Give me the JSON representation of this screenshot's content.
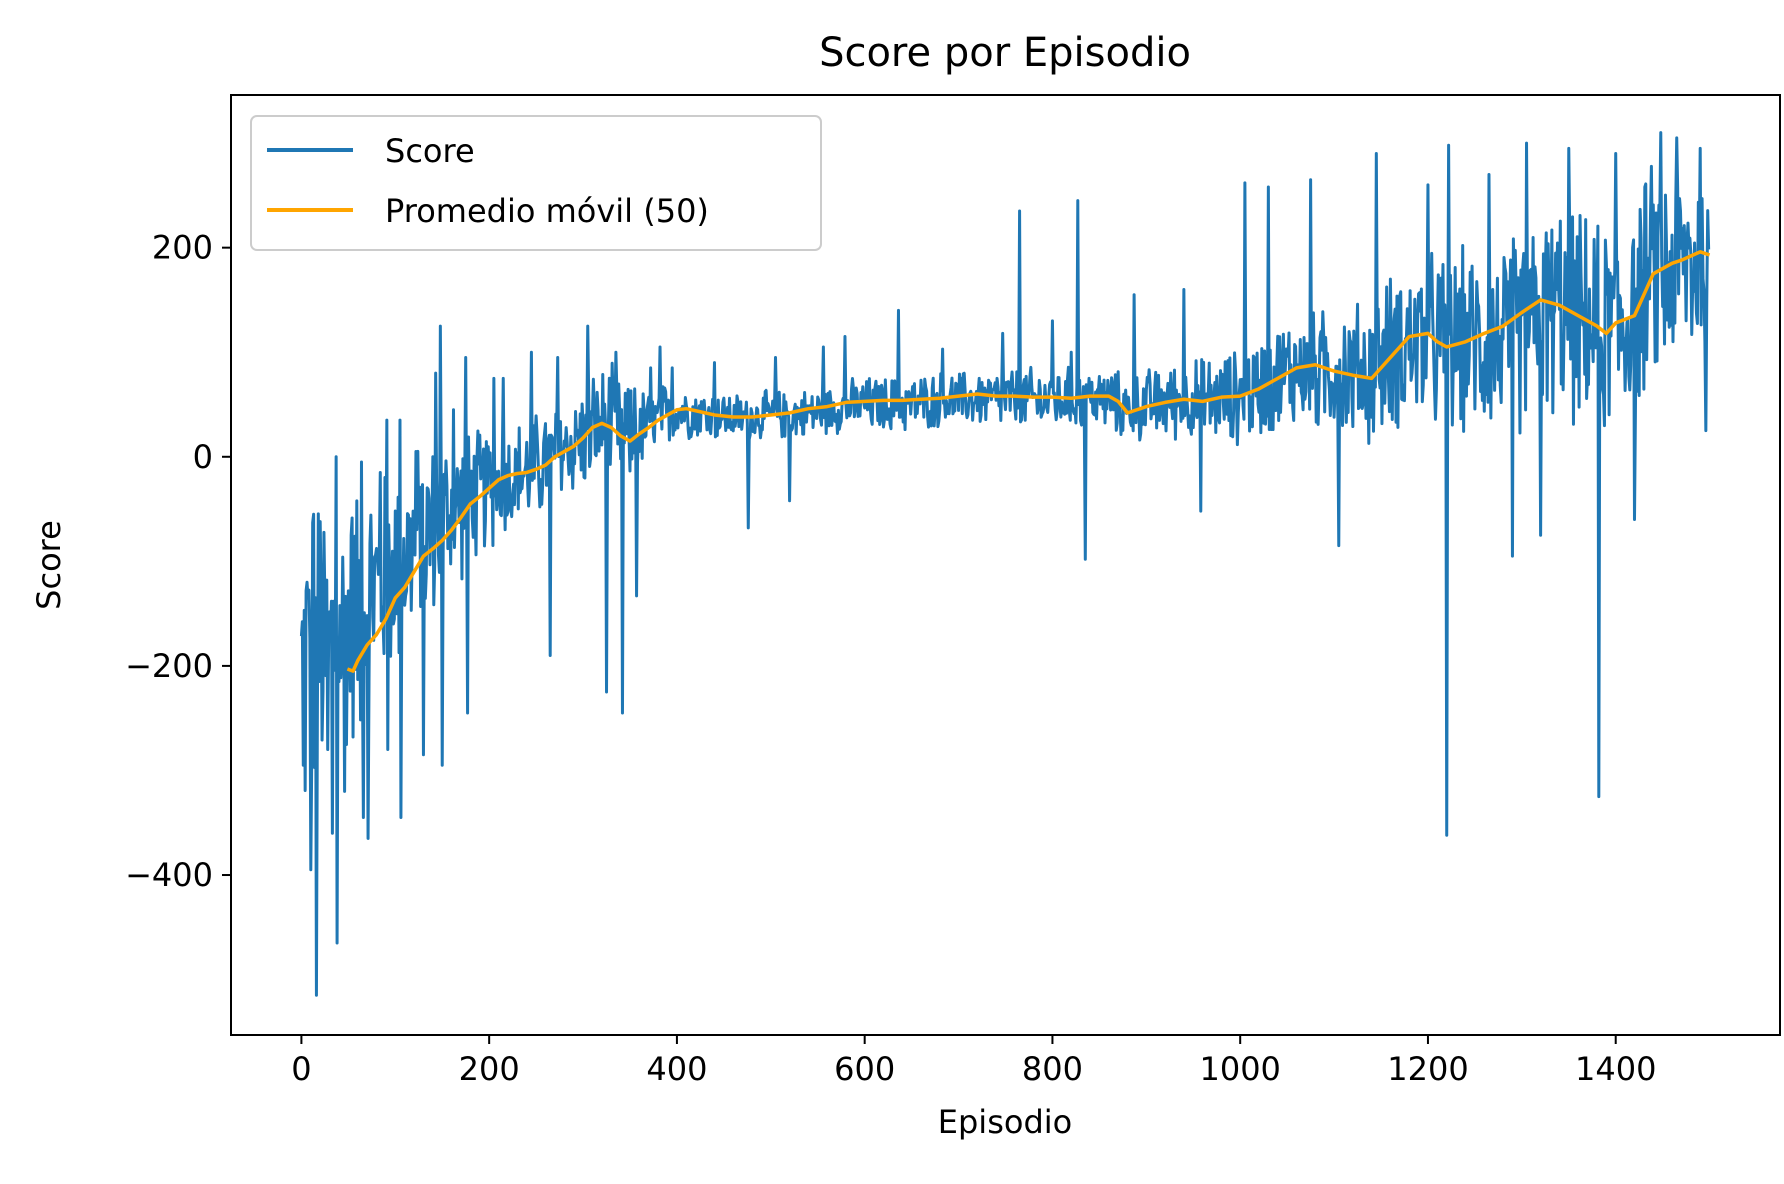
{
  "chart_data": {
    "type": "line",
    "title": "Score por Episodio",
    "xlabel": "Episodio",
    "ylabel": "Score",
    "xlim": [
      -75,
      1575
    ],
    "ylim": [
      -553,
      346
    ],
    "x_ticks": [
      {
        "value": 0,
        "label": "0"
      },
      {
        "value": 200,
        "label": "200"
      },
      {
        "value": 400,
        "label": "400"
      },
      {
        "value": 600,
        "label": "600"
      },
      {
        "value": 800,
        "label": "800"
      },
      {
        "value": 1000,
        "label": "1000"
      },
      {
        "value": 1200,
        "label": "1200"
      },
      {
        "value": 1400,
        "label": "1400"
      }
    ],
    "y_ticks": [
      {
        "value": 200,
        "label": "200"
      },
      {
        "value": 0,
        "label": "0"
      },
      {
        "value": -200,
        "label": "−200"
      },
      {
        "value": -400,
        "label": "−400"
      }
    ],
    "grid": false,
    "legend_position": "top-left",
    "series": [
      {
        "name": "Score",
        "color": "#1f77b4",
        "approximate": true,
        "x_start": 0,
        "x_step": 1,
        "envelope_x": [
          0,
          10,
          20,
          30,
          40,
          50,
          60,
          70,
          80,
          90,
          100,
          110,
          120,
          130,
          140,
          150,
          160,
          170,
          180,
          190,
          200,
          210,
          220,
          230,
          240,
          250,
          260,
          270,
          280,
          290,
          300,
          310,
          320,
          330,
          340,
          350,
          360,
          370,
          380,
          390,
          400,
          420,
          440,
          460,
          480,
          500,
          520,
          540,
          560,
          580,
          600,
          620,
          640,
          660,
          680,
          700,
          720,
          740,
          760,
          780,
          800,
          820,
          840,
          860,
          880,
          900,
          920,
          940,
          960,
          980,
          1000,
          1020,
          1040,
          1060,
          1080,
          1100,
          1120,
          1140,
          1160,
          1180,
          1200,
          1220,
          1240,
          1260,
          1280,
          1300,
          1320,
          1340,
          1360,
          1380,
          1400,
          1420,
          1440,
          1460,
          1480,
          1500
        ],
        "center": [
          -210,
          -190,
          -195,
          -185,
          -170,
          -160,
          -145,
          -135,
          -125,
          -115,
          -105,
          -95,
          -85,
          -75,
          -68,
          -60,
          -52,
          -45,
          -40,
          -35,
          -30,
          -25,
          -22,
          -18,
          -15,
          -10,
          -5,
          2,
          8,
          12,
          18,
          25,
          30,
          28,
          22,
          20,
          25,
          30,
          35,
          40,
          45,
          42,
          40,
          38,
          38,
          40,
          40,
          42,
          45,
          48,
          50,
          50,
          50,
          52,
          55,
          55,
          55,
          55,
          55,
          55,
          55,
          55,
          55,
          55,
          45,
          50,
          52,
          55,
          55,
          55,
          58,
          65,
          75,
          85,
          80,
          85,
          80,
          80,
          100,
          110,
          110,
          105,
          110,
          110,
          115,
          120,
          135,
          140,
          130,
          120,
          125,
          140,
          175,
          180,
          185,
          185
        ],
        "spread": [
          190,
          190,
          175,
          165,
          160,
          150,
          140,
          130,
          125,
          120,
          115,
          110,
          105,
          100,
          95,
          90,
          85,
          80,
          75,
          70,
          65,
          65,
          60,
          60,
          60,
          60,
          58,
          55,
          55,
          55,
          60,
          62,
          65,
          65,
          60,
          55,
          45,
          40,
          38,
          35,
          30,
          28,
          28,
          26,
          26,
          26,
          26,
          26,
          26,
          28,
          30,
          30,
          30,
          30,
          30,
          30,
          30,
          32,
          34,
          34,
          34,
          34,
          34,
          34,
          36,
          38,
          40,
          42,
          45,
          48,
          52,
          55,
          60,
          62,
          65,
          70,
          75,
          80,
          85,
          90,
          95,
          100,
          100,
          100,
          105,
          110,
          110,
          115,
          115,
          115,
          115,
          120,
          120,
          115,
          110,
          110
        ],
        "spikes": [
          {
            "x": 2,
            "y": -295
          },
          {
            "x": 6,
            "y": -120
          },
          {
            "x": 10,
            "y": -395
          },
          {
            "x": 13,
            "y": -55
          },
          {
            "x": 16,
            "y": -515
          },
          {
            "x": 20,
            "y": -62
          },
          {
            "x": 28,
            "y": -280
          },
          {
            "x": 33,
            "y": -360
          },
          {
            "x": 37,
            "y": 0
          },
          {
            "x": 38,
            "y": -465
          },
          {
            "x": 46,
            "y": -320
          },
          {
            "x": 53,
            "y": -75
          },
          {
            "x": 64,
            "y": -5
          },
          {
            "x": 66,
            "y": -345
          },
          {
            "x": 71,
            "y": -365
          },
          {
            "x": 84,
            "y": -15
          },
          {
            "x": 91,
            "y": 35
          },
          {
            "x": 92,
            "y": -280
          },
          {
            "x": 105,
            "y": 35
          },
          {
            "x": 106,
            "y": -345
          },
          {
            "x": 122,
            "y": 5
          },
          {
            "x": 130,
            "y": -285
          },
          {
            "x": 143,
            "y": 80
          },
          {
            "x": 148,
            "y": 125
          },
          {
            "x": 150,
            "y": -295
          },
          {
            "x": 162,
            "y": 45
          },
          {
            "x": 175,
            "y": 95
          },
          {
            "x": 177,
            "y": -245
          },
          {
            "x": 205,
            "y": 75
          },
          {
            "x": 215,
            "y": 75
          },
          {
            "x": 245,
            "y": 100
          },
          {
            "x": 265,
            "y": -190
          },
          {
            "x": 273,
            "y": 95
          },
          {
            "x": 305,
            "y": 125
          },
          {
            "x": 325,
            "y": -225
          },
          {
            "x": 335,
            "y": 100
          },
          {
            "x": 342,
            "y": -245
          },
          {
            "x": 346,
            "y": 25
          },
          {
            "x": 355,
            "y": 65
          },
          {
            "x": 357,
            "y": -133
          },
          {
            "x": 372,
            "y": 85
          },
          {
            "x": 382,
            "y": 105
          },
          {
            "x": 395,
            "y": 85
          },
          {
            "x": 440,
            "y": 90
          },
          {
            "x": 476,
            "y": -68
          },
          {
            "x": 505,
            "y": 95
          },
          {
            "x": 520,
            "y": -42
          },
          {
            "x": 556,
            "y": 105
          },
          {
            "x": 579,
            "y": 115
          },
          {
            "x": 636,
            "y": 140
          },
          {
            "x": 683,
            "y": 103
          },
          {
            "x": 747,
            "y": 118
          },
          {
            "x": 765,
            "y": 235
          },
          {
            "x": 800,
            "y": 130
          },
          {
            "x": 820,
            "y": 100
          },
          {
            "x": 827,
            "y": 245
          },
          {
            "x": 835,
            "y": -98
          },
          {
            "x": 887,
            "y": 155
          },
          {
            "x": 940,
            "y": 160
          },
          {
            "x": 958,
            "y": -52
          },
          {
            "x": 1005,
            "y": 262
          },
          {
            "x": 1030,
            "y": 258
          },
          {
            "x": 1075,
            "y": 265
          },
          {
            "x": 1105,
            "y": -85
          },
          {
            "x": 1145,
            "y": 290
          },
          {
            "x": 1200,
            "y": 260
          },
          {
            "x": 1220,
            "y": -362
          },
          {
            "x": 1222,
            "y": 298
          },
          {
            "x": 1265,
            "y": 270
          },
          {
            "x": 1290,
            "y": -95
          },
          {
            "x": 1305,
            "y": 300
          },
          {
            "x": 1320,
            "y": -75
          },
          {
            "x": 1350,
            "y": 295
          },
          {
            "x": 1382,
            "y": -325
          },
          {
            "x": 1400,
            "y": 290
          },
          {
            "x": 1420,
            "y": -60
          },
          {
            "x": 1448,
            "y": 310
          },
          {
            "x": 1465,
            "y": 305
          },
          {
            "x": 1490,
            "y": 295
          },
          {
            "x": 1496,
            "y": 25
          }
        ]
      },
      {
        "name": "Promedio móvil (50)",
        "color": "#ffa500",
        "approximate": true,
        "x": [
          49,
          55,
          60,
          70,
          80,
          90,
          100,
          110,
          120,
          130,
          140,
          150,
          160,
          170,
          180,
          190,
          200,
          210,
          220,
          230,
          240,
          250,
          260,
          270,
          280,
          290,
          300,
          310,
          320,
          330,
          340,
          350,
          360,
          370,
          380,
          390,
          400,
          410,
          420,
          440,
          460,
          480,
          500,
          520,
          540,
          560,
          580,
          600,
          620,
          640,
          660,
          680,
          700,
          720,
          740,
          760,
          780,
          800,
          820,
          840,
          860,
          870,
          880,
          890,
          900,
          920,
          940,
          960,
          980,
          1000,
          1020,
          1040,
          1060,
          1080,
          1100,
          1120,
          1140,
          1160,
          1180,
          1200,
          1210,
          1220,
          1240,
          1260,
          1280,
          1300,
          1320,
          1340,
          1360,
          1380,
          1390,
          1400,
          1420,
          1440,
          1460,
          1470,
          1480,
          1490,
          1500
        ],
        "y": [
          -203,
          -205,
          -195,
          -180,
          -170,
          -155,
          -135,
          -125,
          -110,
          -95,
          -88,
          -80,
          -70,
          -58,
          -45,
          -38,
          -30,
          -22,
          -18,
          -16,
          -15,
          -12,
          -8,
          0,
          5,
          10,
          18,
          28,
          32,
          28,
          20,
          15,
          22,
          28,
          35,
          40,
          45,
          46,
          44,
          40,
          38,
          38,
          40,
          42,
          46,
          48,
          52,
          53,
          54,
          54,
          55,
          56,
          58,
          60,
          58,
          58,
          57,
          57,
          56,
          58,
          58,
          53,
          42,
          45,
          48,
          52,
          55,
          53,
          57,
          58,
          65,
          75,
          85,
          88,
          82,
          78,
          75,
          95,
          115,
          118,
          110,
          105,
          110,
          118,
          125,
          138,
          150,
          145,
          135,
          125,
          118,
          128,
          135,
          175,
          185,
          188,
          192,
          196,
          193
        ]
      }
    ]
  }
}
